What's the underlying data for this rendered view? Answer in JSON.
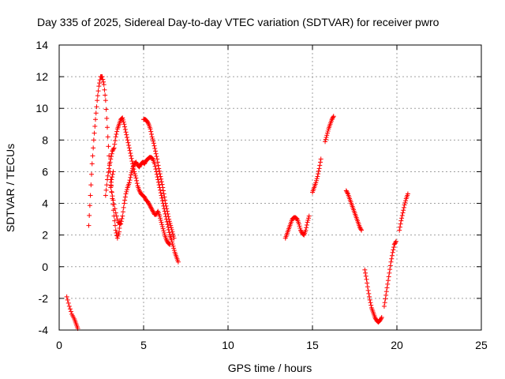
{
  "chart_data": {
    "type": "scatter",
    "title": "Day 335 of 2025, Sidereal Day-to-day VTEC variation (SDTVAR) for receiver pwro",
    "xlabel": "GPS time / hours",
    "ylabel": "SDTVAR / TECUs",
    "xlim": [
      0,
      25
    ],
    "ylim": [
      -4,
      14
    ],
    "xticks": [
      0,
      5,
      10,
      15,
      20,
      25
    ],
    "yticks": [
      -4,
      -2,
      0,
      2,
      4,
      6,
      8,
      10,
      12,
      14
    ],
    "xtick_labels": [
      "0",
      "5",
      "10",
      "15",
      "20",
      "25"
    ],
    "ytick_labels": [
      "-4",
      "-2",
      "0",
      "2",
      "4",
      "6",
      "8",
      "10",
      "12",
      "14"
    ],
    "grid": true,
    "marker": "+",
    "color": "#ff0000",
    "series": [
      {
        "name": "pwro",
        "segments": [
          [
            [
              0.45,
              -1.9
            ],
            [
              0.6,
              -2.5
            ],
            [
              0.75,
              -3.0
            ],
            [
              0.9,
              -3.3
            ],
            [
              1.0,
              -3.6
            ],
            [
              1.1,
              -3.9
            ]
          ],
          [
            [
              1.75,
              2.6
            ],
            [
              1.85,
              4.5
            ],
            [
              1.95,
              6.5
            ],
            [
              2.05,
              8.0
            ],
            [
              2.15,
              9.3
            ],
            [
              2.25,
              10.5
            ],
            [
              2.35,
              11.4
            ],
            [
              2.45,
              12.0
            ],
            [
              2.55,
              12.0
            ],
            [
              2.65,
              11.5
            ],
            [
              2.75,
              10.5
            ],
            [
              2.85,
              8.8
            ],
            [
              2.95,
              7.0
            ],
            [
              3.05,
              5.5
            ],
            [
              3.15,
              4.3
            ],
            [
              3.25,
              3.2
            ],
            [
              3.35,
              2.3
            ],
            [
              3.45,
              1.8
            ],
            [
              3.55,
              2.2
            ],
            [
              3.6,
              2.9
            ]
          ],
          [
            [
              2.75,
              4.5
            ],
            [
              2.85,
              5.5
            ],
            [
              2.95,
              6.2
            ],
            [
              3.05,
              6.8
            ],
            [
              3.15,
              7.3
            ],
            [
              3.25,
              7.5
            ],
            [
              3.35,
              8.2
            ],
            [
              3.45,
              8.7
            ],
            [
              3.55,
              9.0
            ],
            [
              3.65,
              9.3
            ],
            [
              3.75,
              9.4
            ],
            [
              3.85,
              9.0
            ],
            [
              3.95,
              8.5
            ],
            [
              4.05,
              8.0
            ],
            [
              4.15,
              7.5
            ],
            [
              4.25,
              7.0
            ],
            [
              4.35,
              6.5
            ],
            [
              4.45,
              6.0
            ],
            [
              4.55,
              5.6
            ],
            [
              4.65,
              5.1
            ],
            [
              4.75,
              4.8
            ],
            [
              4.85,
              4.6
            ],
            [
              4.95,
              4.5
            ],
            [
              5.05,
              4.4
            ],
            [
              5.15,
              4.2
            ],
            [
              5.25,
              4.1
            ],
            [
              5.35,
              3.9
            ],
            [
              5.45,
              3.7
            ],
            [
              5.55,
              3.5
            ],
            [
              5.65,
              3.3
            ],
            [
              5.75,
              3.3
            ],
            [
              5.85,
              3.5
            ],
            [
              5.95,
              3.2
            ],
            [
              6.05,
              2.8
            ],
            [
              6.15,
              2.4
            ],
            [
              6.25,
              2.0
            ],
            [
              6.35,
              1.7
            ],
            [
              6.45,
              1.5
            ],
            [
              6.55,
              1.4
            ]
          ],
          [
            [
              3.2,
              6.0
            ],
            [
              3.1,
              5.5
            ],
            [
              3.05,
              5.0
            ],
            [
              3.2,
              4.2
            ],
            [
              3.35,
              3.4
            ],
            [
              3.5,
              2.8
            ],
            [
              3.65,
              2.7
            ],
            [
              3.75,
              3.2
            ],
            [
              3.85,
              4.0
            ],
            [
              3.95,
              4.6
            ],
            [
              4.05,
              5.0
            ],
            [
              4.15,
              5.3
            ],
            [
              4.25,
              5.8
            ],
            [
              4.35,
              6.2
            ],
            [
              4.45,
              6.5
            ],
            [
              4.55,
              6.6
            ],
            [
              4.65,
              6.4
            ],
            [
              4.75,
              6.3
            ],
            [
              4.85,
              6.5
            ],
            [
              4.95,
              6.6
            ],
            [
              5.05,
              6.5
            ],
            [
              5.15,
              6.7
            ],
            [
              5.25,
              6.8
            ],
            [
              5.35,
              6.9
            ],
            [
              5.45,
              6.9
            ],
            [
              5.55,
              6.8
            ],
            [
              5.65,
              6.5
            ],
            [
              5.75,
              6.0
            ],
            [
              5.85,
              5.5
            ],
            [
              5.95,
              5.0
            ],
            [
              6.05,
              4.5
            ],
            [
              6.15,
              4.0
            ],
            [
              6.25,
              3.5
            ],
            [
              6.35,
              3.0
            ],
            [
              6.45,
              2.5
            ],
            [
              6.55,
              2.0
            ],
            [
              6.65,
              1.7
            ],
            [
              6.75,
              1.3
            ],
            [
              6.85,
              0.9
            ],
            [
              6.95,
              0.6
            ],
            [
              7.05,
              0.3
            ]
          ],
          [
            [
              5.0,
              9.3
            ],
            [
              5.1,
              9.3
            ],
            [
              5.2,
              9.2
            ],
            [
              5.3,
              9.0
            ],
            [
              5.4,
              8.7
            ],
            [
              5.5,
              8.2
            ],
            [
              5.6,
              7.8
            ],
            [
              5.7,
              7.3
            ],
            [
              5.8,
              6.8
            ],
            [
              5.9,
              6.2
            ],
            [
              6.0,
              5.7
            ],
            [
              6.1,
              5.2
            ],
            [
              6.2,
              4.6
            ],
            [
              6.3,
              4.0
            ],
            [
              6.4,
              3.5
            ],
            [
              6.5,
              3.0
            ],
            [
              6.6,
              2.6
            ],
            [
              6.7,
              2.2
            ],
            [
              6.8,
              1.8
            ]
          ],
          [
            [
              13.4,
              1.8
            ],
            [
              13.5,
              2.1
            ],
            [
              13.6,
              2.4
            ],
            [
              13.7,
              2.7
            ],
            [
              13.8,
              3.0
            ],
            [
              13.9,
              3.1
            ],
            [
              14.0,
              3.1
            ],
            [
              14.1,
              3.0
            ],
            [
              14.2,
              2.7
            ],
            [
              14.3,
              2.3
            ],
            [
              14.4,
              2.1
            ],
            [
              14.5,
              2.0
            ],
            [
              14.6,
              2.3
            ],
            [
              14.7,
              2.8
            ],
            [
              14.8,
              3.2
            ]
          ],
          [
            [
              15.0,
              4.7
            ],
            [
              15.1,
              5.0
            ],
            [
              15.2,
              5.3
            ],
            [
              15.3,
              5.7
            ],
            [
              15.4,
              6.2
            ],
            [
              15.5,
              6.8
            ]
          ],
          [
            [
              15.75,
              7.9
            ],
            [
              15.85,
              8.3
            ],
            [
              15.95,
              8.7
            ],
            [
              16.05,
              9.0
            ],
            [
              16.15,
              9.3
            ],
            [
              16.25,
              9.5
            ]
          ],
          [
            [
              17.0,
              4.8
            ],
            [
              17.1,
              4.6
            ],
            [
              17.2,
              4.3
            ],
            [
              17.3,
              4.0
            ],
            [
              17.4,
              3.7
            ],
            [
              17.5,
              3.4
            ],
            [
              17.6,
              3.1
            ],
            [
              17.7,
              2.8
            ],
            [
              17.8,
              2.5
            ],
            [
              17.9,
              2.3
            ]
          ],
          [
            [
              18.1,
              -0.2
            ],
            [
              18.2,
              -0.8
            ],
            [
              18.3,
              -1.5
            ],
            [
              18.4,
              -2.1
            ],
            [
              18.5,
              -2.6
            ],
            [
              18.6,
              -2.9
            ],
            [
              18.7,
              -3.2
            ],
            [
              18.8,
              -3.4
            ],
            [
              18.9,
              -3.5
            ],
            [
              19.0,
              -3.4
            ],
            [
              19.1,
              -3.2
            ]
          ],
          [
            [
              19.25,
              -2.5
            ],
            [
              19.35,
              -1.8
            ],
            [
              19.45,
              -1.1
            ],
            [
              19.55,
              -0.4
            ],
            [
              19.65,
              0.3
            ],
            [
              19.75,
              0.9
            ],
            [
              19.85,
              1.4
            ],
            [
              19.95,
              1.6
            ]
          ],
          [
            [
              20.15,
              2.3
            ],
            [
              20.25,
              2.9
            ],
            [
              20.35,
              3.4
            ],
            [
              20.45,
              3.9
            ],
            [
              20.55,
              4.3
            ],
            [
              20.65,
              4.6
            ]
          ]
        ]
      }
    ]
  }
}
